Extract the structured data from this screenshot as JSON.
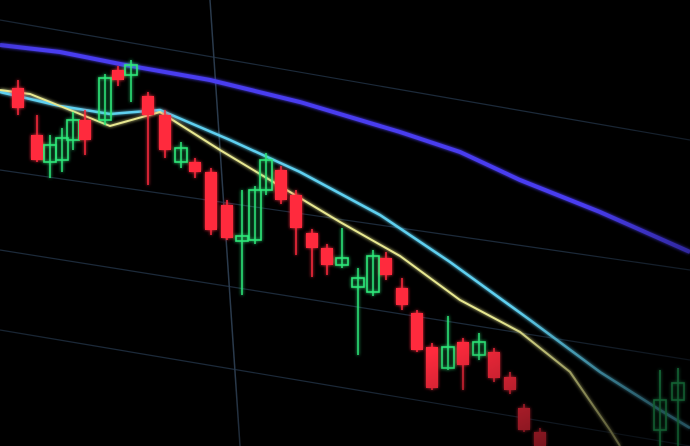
{
  "scene": {
    "background": "#000000",
    "up_color": "#2ee87a",
    "down_color": "#ff2a3c",
    "ma_long_color": "#4a3cf0",
    "ma_mid_color": "#5fd0f0",
    "ma_short_color": "#e8e890",
    "grid_color": "#1c2a3a"
  }
}
